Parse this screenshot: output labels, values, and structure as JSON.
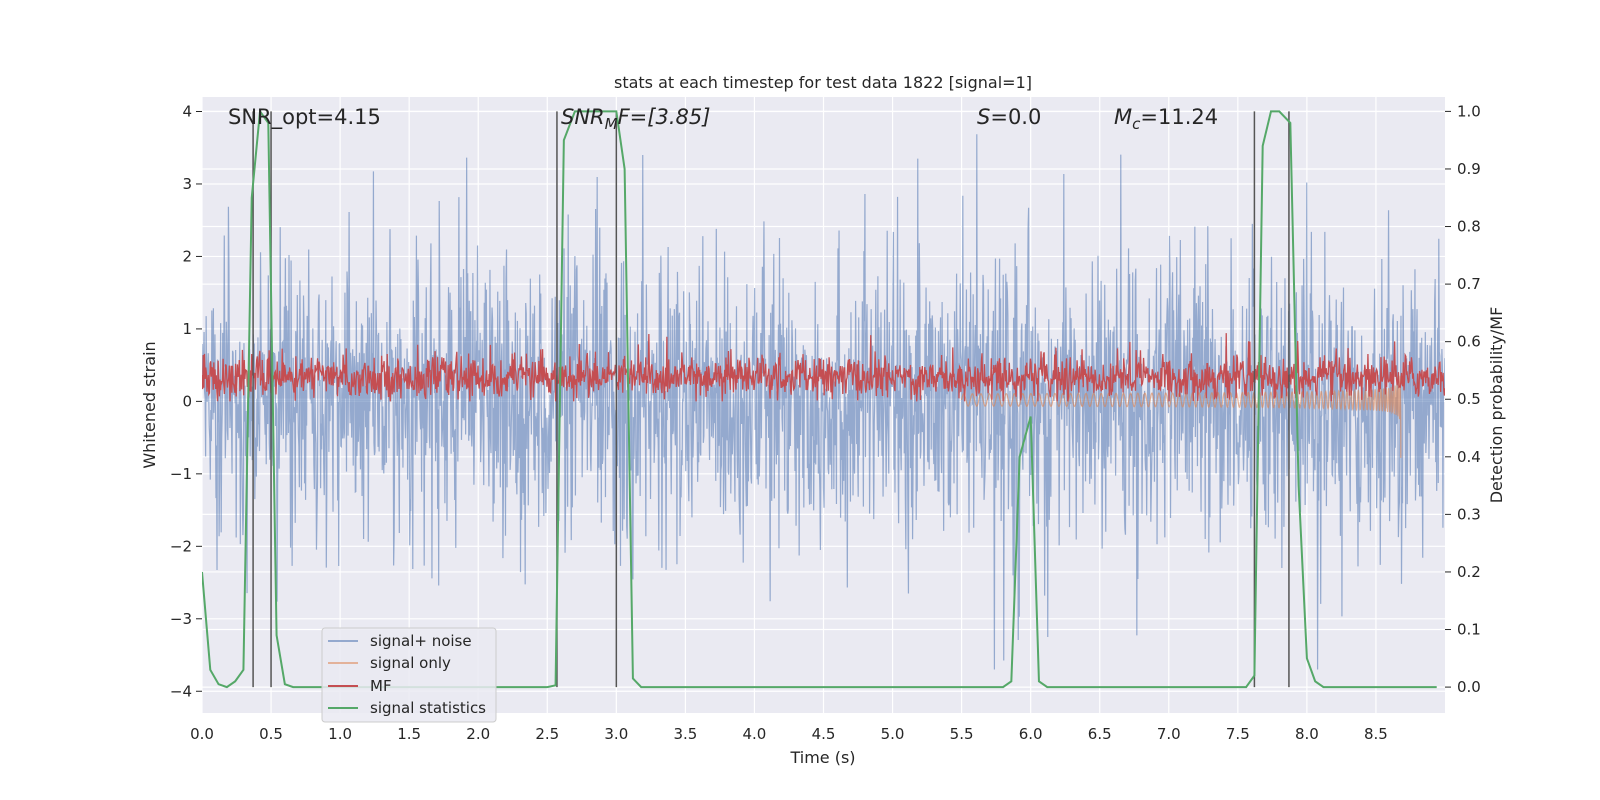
{
  "chart_data": {
    "type": "line",
    "title": "stats at each timestep for test data 1822 [signal=1]",
    "xlabel": "Time (s)",
    "ylabel": "Whitened strain",
    "ylabel_right": "Detection probability/MF",
    "xlim": [
      0.0,
      9.0
    ],
    "ylim": [
      -4.3,
      4.2
    ],
    "ylim_right": [
      -0.045,
      1.025
    ],
    "x_ticks": [
      "0.0",
      "0.5",
      "1.0",
      "1.5",
      "2.0",
      "2.5",
      "3.0",
      "3.5",
      "4.0",
      "4.5",
      "5.0",
      "5.5",
      "6.0",
      "6.5",
      "7.0",
      "7.5",
      "8.0",
      "8.5"
    ],
    "y_ticks": [
      "4",
      "3",
      "2",
      "1",
      "0",
      "−1",
      "−2",
      "−3",
      "−4"
    ],
    "y_ticks_right": [
      "1.0",
      "0.9",
      "0.8",
      "0.7",
      "0.6",
      "0.5",
      "0.4",
      "0.3",
      "0.2",
      "0.1",
      "0.0"
    ],
    "grid": true,
    "legend_position": "lower-left",
    "annotations": {
      "snr_opt": "SNR_opt=4.15",
      "snr_mf_base": "SNR",
      "snr_mf_sub": "M",
      "snr_mf_rest": "F=[3.85]",
      "s_base": "S",
      "s_rest": "=0.0",
      "mc_base": "M",
      "mc_sub": "c",
      "mc_rest": "=11.24"
    },
    "series": [
      {
        "name": "signal+ noise",
        "color": "#4c72b0",
        "axis": "left",
        "description_values": "noise band roughly -2.2 to 2.3 with spikes to about ±3.8",
        "band": [
          -2.2,
          2.3
        ]
      },
      {
        "name": "signal only",
        "color": "#dd8452",
        "axis": "left",
        "chirp_start": 5.5,
        "chirp_end": 8.68,
        "min_value": -0.78
      },
      {
        "name": "MF",
        "color": "#c44e52",
        "axis": "left",
        "band": [
          0.05,
          0.65
        ]
      },
      {
        "name": "signal statistics",
        "color": "#55a868",
        "axis": "right",
        "x": [
          0.0,
          0.06,
          0.12,
          0.18,
          0.24,
          0.3,
          0.36,
          0.42,
          0.48,
          0.54,
          0.6,
          0.66,
          2.5,
          2.56,
          2.62,
          2.7,
          2.8,
          2.9,
          3.0,
          3.06,
          3.12,
          3.18,
          5.8,
          5.86,
          5.92,
          6.0,
          6.06,
          6.12,
          7.56,
          7.62,
          7.68,
          7.74,
          7.8,
          7.88,
          7.94,
          8.0,
          8.06,
          8.12,
          8.94
        ],
        "y": [
          0.2,
          0.03,
          0.005,
          0.0,
          0.01,
          0.03,
          0.85,
          1.0,
          0.98,
          0.09,
          0.005,
          0.0,
          0.0,
          0.003,
          0.95,
          1.0,
          1.0,
          1.0,
          1.0,
          0.9,
          0.015,
          0.0,
          0.0,
          0.01,
          0.4,
          0.47,
          0.01,
          0.0,
          0.0,
          0.02,
          0.94,
          1.0,
          1.0,
          0.98,
          0.35,
          0.05,
          0.01,
          0.0,
          0.0
        ]
      },
      {
        "name": "detections",
        "color": "#555555",
        "axis": "right",
        "x": [
          0.37,
          0.5,
          2.57,
          3.0,
          7.62,
          7.87
        ],
        "y_range": [
          0.0,
          1.0
        ]
      }
    ]
  }
}
